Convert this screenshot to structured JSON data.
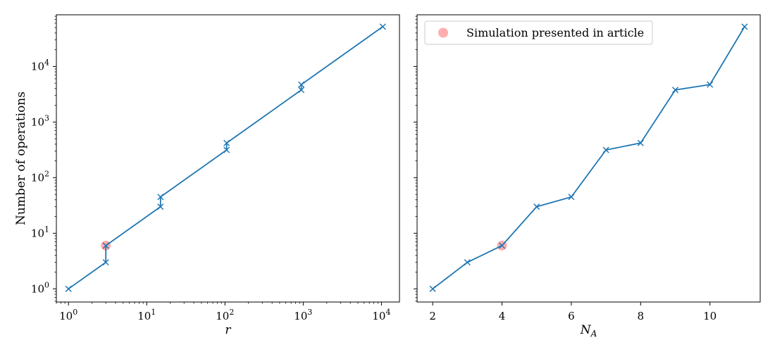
{
  "colors": {
    "series": "#1f77b4",
    "highlight": "#ff6b6b",
    "frame": "#000000"
  },
  "chart_data": [
    {
      "type": "line",
      "xscale": "log",
      "yscale": "log",
      "xlabel": "r",
      "ylabel": "Number of operations",
      "xlim": [
        0.7,
        17000
      ],
      "ylim": [
        0.58,
        85000
      ],
      "xticks": [
        {
          "value": 1,
          "base": "10",
          "exp": "0"
        },
        {
          "value": 10,
          "base": "10",
          "exp": "1"
        },
        {
          "value": 100,
          "base": "10",
          "exp": "2"
        },
        {
          "value": 1000,
          "base": "10",
          "exp": "3"
        },
        {
          "value": 10000,
          "base": "10",
          "exp": "4"
        }
      ],
      "yticks": [
        {
          "value": 1,
          "base": "10",
          "exp": "0"
        },
        {
          "value": 10,
          "base": "10",
          "exp": "1"
        },
        {
          "value": 100,
          "base": "10",
          "exp": "2"
        },
        {
          "value": 1000,
          "base": "10",
          "exp": "3"
        },
        {
          "value": 10000,
          "base": "10",
          "exp": "4"
        }
      ],
      "series": [
        {
          "marker": "x",
          "points": [
            {
              "x": 1,
              "y": 1
            },
            {
              "x": 3,
              "y": 3
            },
            {
              "x": 3,
              "y": 6
            },
            {
              "x": 15,
              "y": 30
            },
            {
              "x": 15,
              "y": 45
            },
            {
              "x": 105,
              "y": 315
            },
            {
              "x": 105,
              "y": 420
            },
            {
              "x": 945,
              "y": 3780
            },
            {
              "x": 945,
              "y": 4725
            },
            {
              "x": 10395,
              "y": 51975
            }
          ]
        }
      ],
      "highlight": {
        "x": 3,
        "y": 6
      }
    },
    {
      "type": "line",
      "xscale": "linear",
      "yscale": "log",
      "xlabel": "N",
      "xlabel_sub": "A",
      "xlim": [
        1.55,
        11.45
      ],
      "ylim": [
        0.58,
        85000
      ],
      "xticks": [
        {
          "value": 2,
          "label": "2"
        },
        {
          "value": 4,
          "label": "4"
        },
        {
          "value": 6,
          "label": "6"
        },
        {
          "value": 8,
          "label": "8"
        },
        {
          "value": 10,
          "label": "10"
        }
      ],
      "yticks": [
        1,
        10,
        100,
        1000,
        10000
      ],
      "series": [
        {
          "marker": "x",
          "points": [
            {
              "x": 2,
              "y": 1
            },
            {
              "x": 3,
              "y": 3
            },
            {
              "x": 4,
              "y": 6
            },
            {
              "x": 5,
              "y": 30
            },
            {
              "x": 6,
              "y": 45
            },
            {
              "x": 7,
              "y": 315
            },
            {
              "x": 8,
              "y": 420
            },
            {
              "x": 9,
              "y": 3780
            },
            {
              "x": 10,
              "y": 4725
            },
            {
              "x": 11,
              "y": 51975
            }
          ]
        }
      ],
      "highlight": {
        "x": 4,
        "y": 6
      },
      "legend": {
        "placement": "top-left",
        "entries": [
          "Simulation presented in article"
        ]
      }
    }
  ]
}
